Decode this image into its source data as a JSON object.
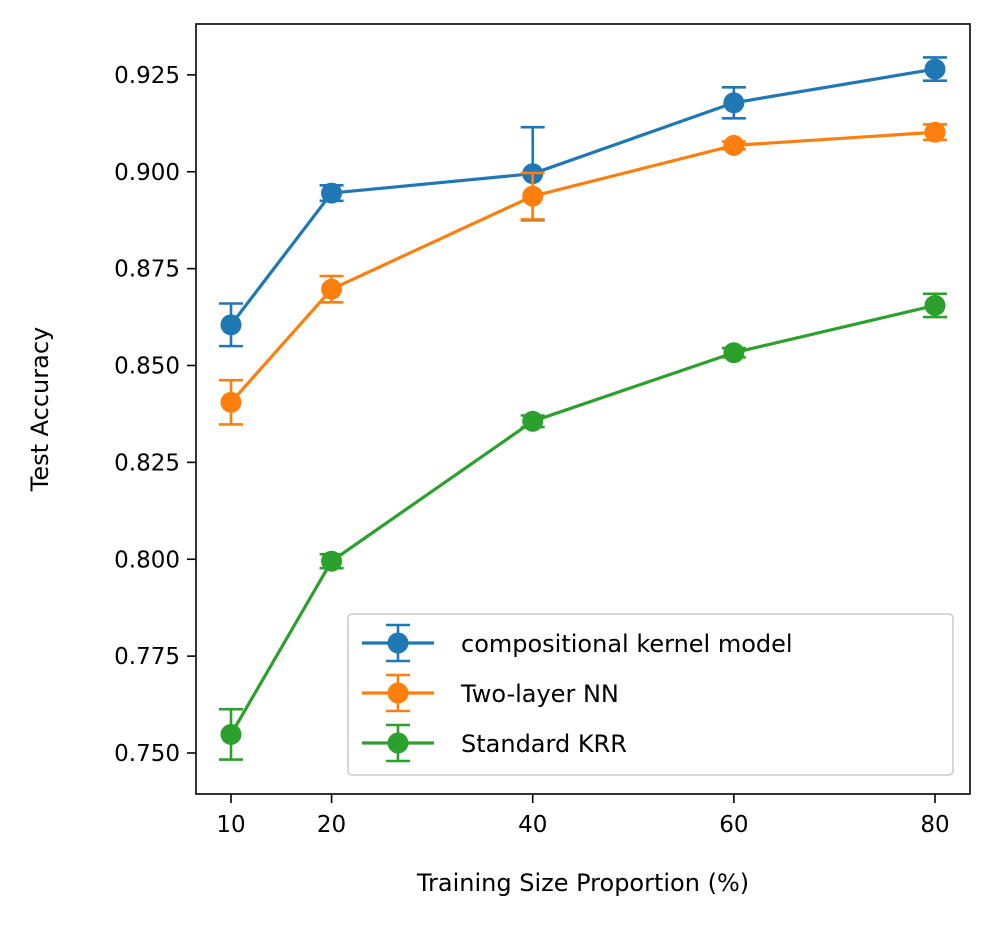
{
  "chart_data": {
    "type": "line",
    "title": "",
    "xlabel": "Training Size Proportion (%)",
    "ylabel": "Test Accuracy",
    "x": [
      10,
      20,
      40,
      60,
      80
    ],
    "xticks": [
      "10",
      "20",
      "40",
      "60",
      "80"
    ],
    "yticks": [
      "0.750",
      "0.775",
      "0.800",
      "0.825",
      "0.850",
      "0.875",
      "0.900",
      "0.925"
    ],
    "xlim": [
      10,
      80
    ],
    "ylim": [
      0.74,
      0.938
    ],
    "grid": false,
    "legend_position": "lower-right",
    "series": [
      {
        "name": "compositional kernel model",
        "color": "#1f77b4",
        "values": [
          0.8605,
          0.8945,
          0.8995,
          0.9178,
          0.9265
        ],
        "errors": [
          0.0055,
          0.002,
          0.012,
          0.004,
          0.003
        ]
      },
      {
        "name": "Two-layer NN",
        "color": "#ff7f0e",
        "values": [
          0.8405,
          0.8697,
          0.8937,
          0.9068,
          0.9102
        ],
        "errors": [
          0.0057,
          0.0034,
          0.006,
          0.001,
          0.002
        ]
      },
      {
        "name": "Standard KRR",
        "color": "#2ca02c",
        "values": [
          0.7548,
          0.7995,
          0.8356,
          0.8533,
          0.8655
        ],
        "errors": [
          0.0065,
          0.0018,
          0.0015,
          0.0012,
          0.003
        ]
      }
    ]
  }
}
